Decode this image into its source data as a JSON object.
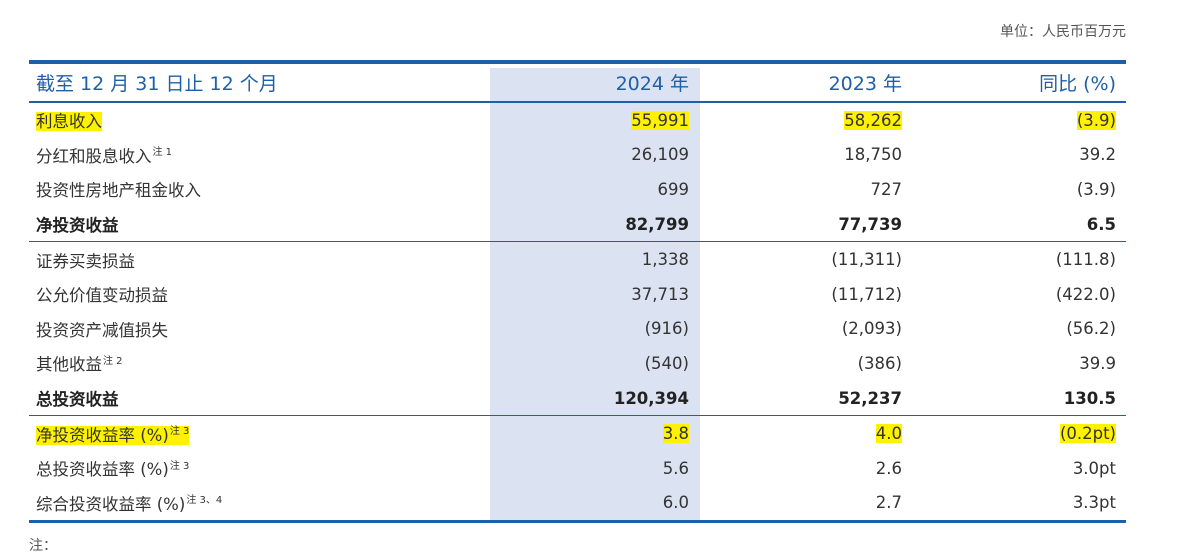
{
  "unit_label": "单位：人民币百万元",
  "header": {
    "period": "截至 12 月 31 日止 12 个月",
    "y2024": "2024 年",
    "y2023": "2023 年",
    "yoy": "同比 (%)"
  },
  "rows": [
    {
      "label": "利息收入",
      "note": "",
      "v2024": "55,991",
      "v2023": "58,262",
      "yoy": "(3.9)"
    },
    {
      "label": "分红和股息收入",
      "note": "注 1",
      "v2024": "26,109",
      "v2023": "18,750",
      "yoy": "39.2"
    },
    {
      "label": "投资性房地产租金收入",
      "note": "",
      "v2024": "699",
      "v2023": "727",
      "yoy": "(3.9)"
    },
    {
      "label": "净投资收益",
      "note": "",
      "v2024": "82,799",
      "v2023": "77,739",
      "yoy": "6.5"
    },
    {
      "label": "证券买卖损益",
      "note": "",
      "v2024": "1,338",
      "v2023": "(11,311)",
      "yoy": "(111.8)"
    },
    {
      "label": "公允价值变动损益",
      "note": "",
      "v2024": "37,713",
      "v2023": "(11,712)",
      "yoy": "(422.0)"
    },
    {
      "label": "投资资产减值损失",
      "note": "",
      "v2024": "(916)",
      "v2023": "(2,093)",
      "yoy": "(56.2)"
    },
    {
      "label": "其他收益",
      "note": "注 2",
      "v2024": "(540)",
      "v2023": "(386)",
      "yoy": "39.9"
    },
    {
      "label": "总投资收益",
      "note": "",
      "v2024": "120,394",
      "v2023": "52,237",
      "yoy": "130.5"
    },
    {
      "label": "净投资收益率 (%)",
      "note": "注 3",
      "v2024": "3.8",
      "v2023": "4.0",
      "yoy": "(0.2pt)"
    },
    {
      "label": "总投资收益率 (%)",
      "note": "注 3",
      "v2024": "5.6",
      "v2023": "2.6",
      "yoy": "3.0pt"
    },
    {
      "label": "综合投资收益率 (%)",
      "note": "注 3、4",
      "v2024": "6.0",
      "v2023": "2.7",
      "yoy": "3.3pt"
    }
  ],
  "footnote_label": "注：",
  "colors": {
    "accent": "#1f5fa8",
    "shade": "#dbe3f2",
    "highlight": "#fff200"
  }
}
